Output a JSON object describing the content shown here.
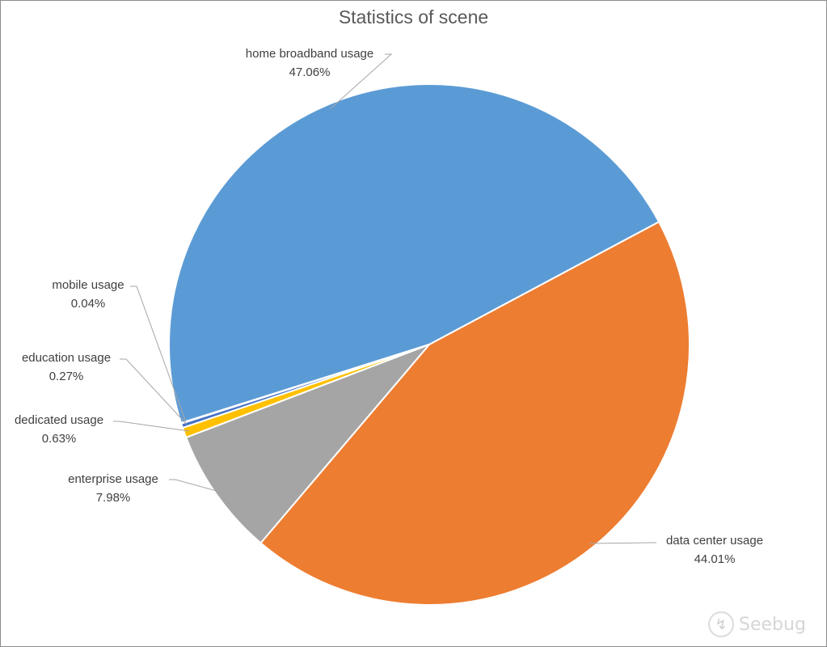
{
  "chart_data": {
    "type": "pie",
    "title": "Statistics of scene",
    "slices": [
      {
        "label": "home broadband usage",
        "value": 47.06,
        "value_label": "47.06%",
        "color": "#5b9bd5"
      },
      {
        "label": "data center usage",
        "value": 44.01,
        "value_label": "44.01%",
        "color": "#ed7d31"
      },
      {
        "label": "enterprise usage",
        "value": 7.98,
        "value_label": "7.98%",
        "color": "#a5a5a5"
      },
      {
        "label": "dedicated usage",
        "value": 0.63,
        "value_label": "0.63%",
        "color": "#ffc000"
      },
      {
        "label": "education usage",
        "value": 0.27,
        "value_label": "0.27%",
        "color": "#4472c4"
      },
      {
        "label": "mobile usage",
        "value": 0.04,
        "value_label": "0.04%",
        "color": "#70ad47"
      }
    ]
  },
  "watermark": {
    "text": "Seebug",
    "icon": "seebug-logo-icon"
  }
}
